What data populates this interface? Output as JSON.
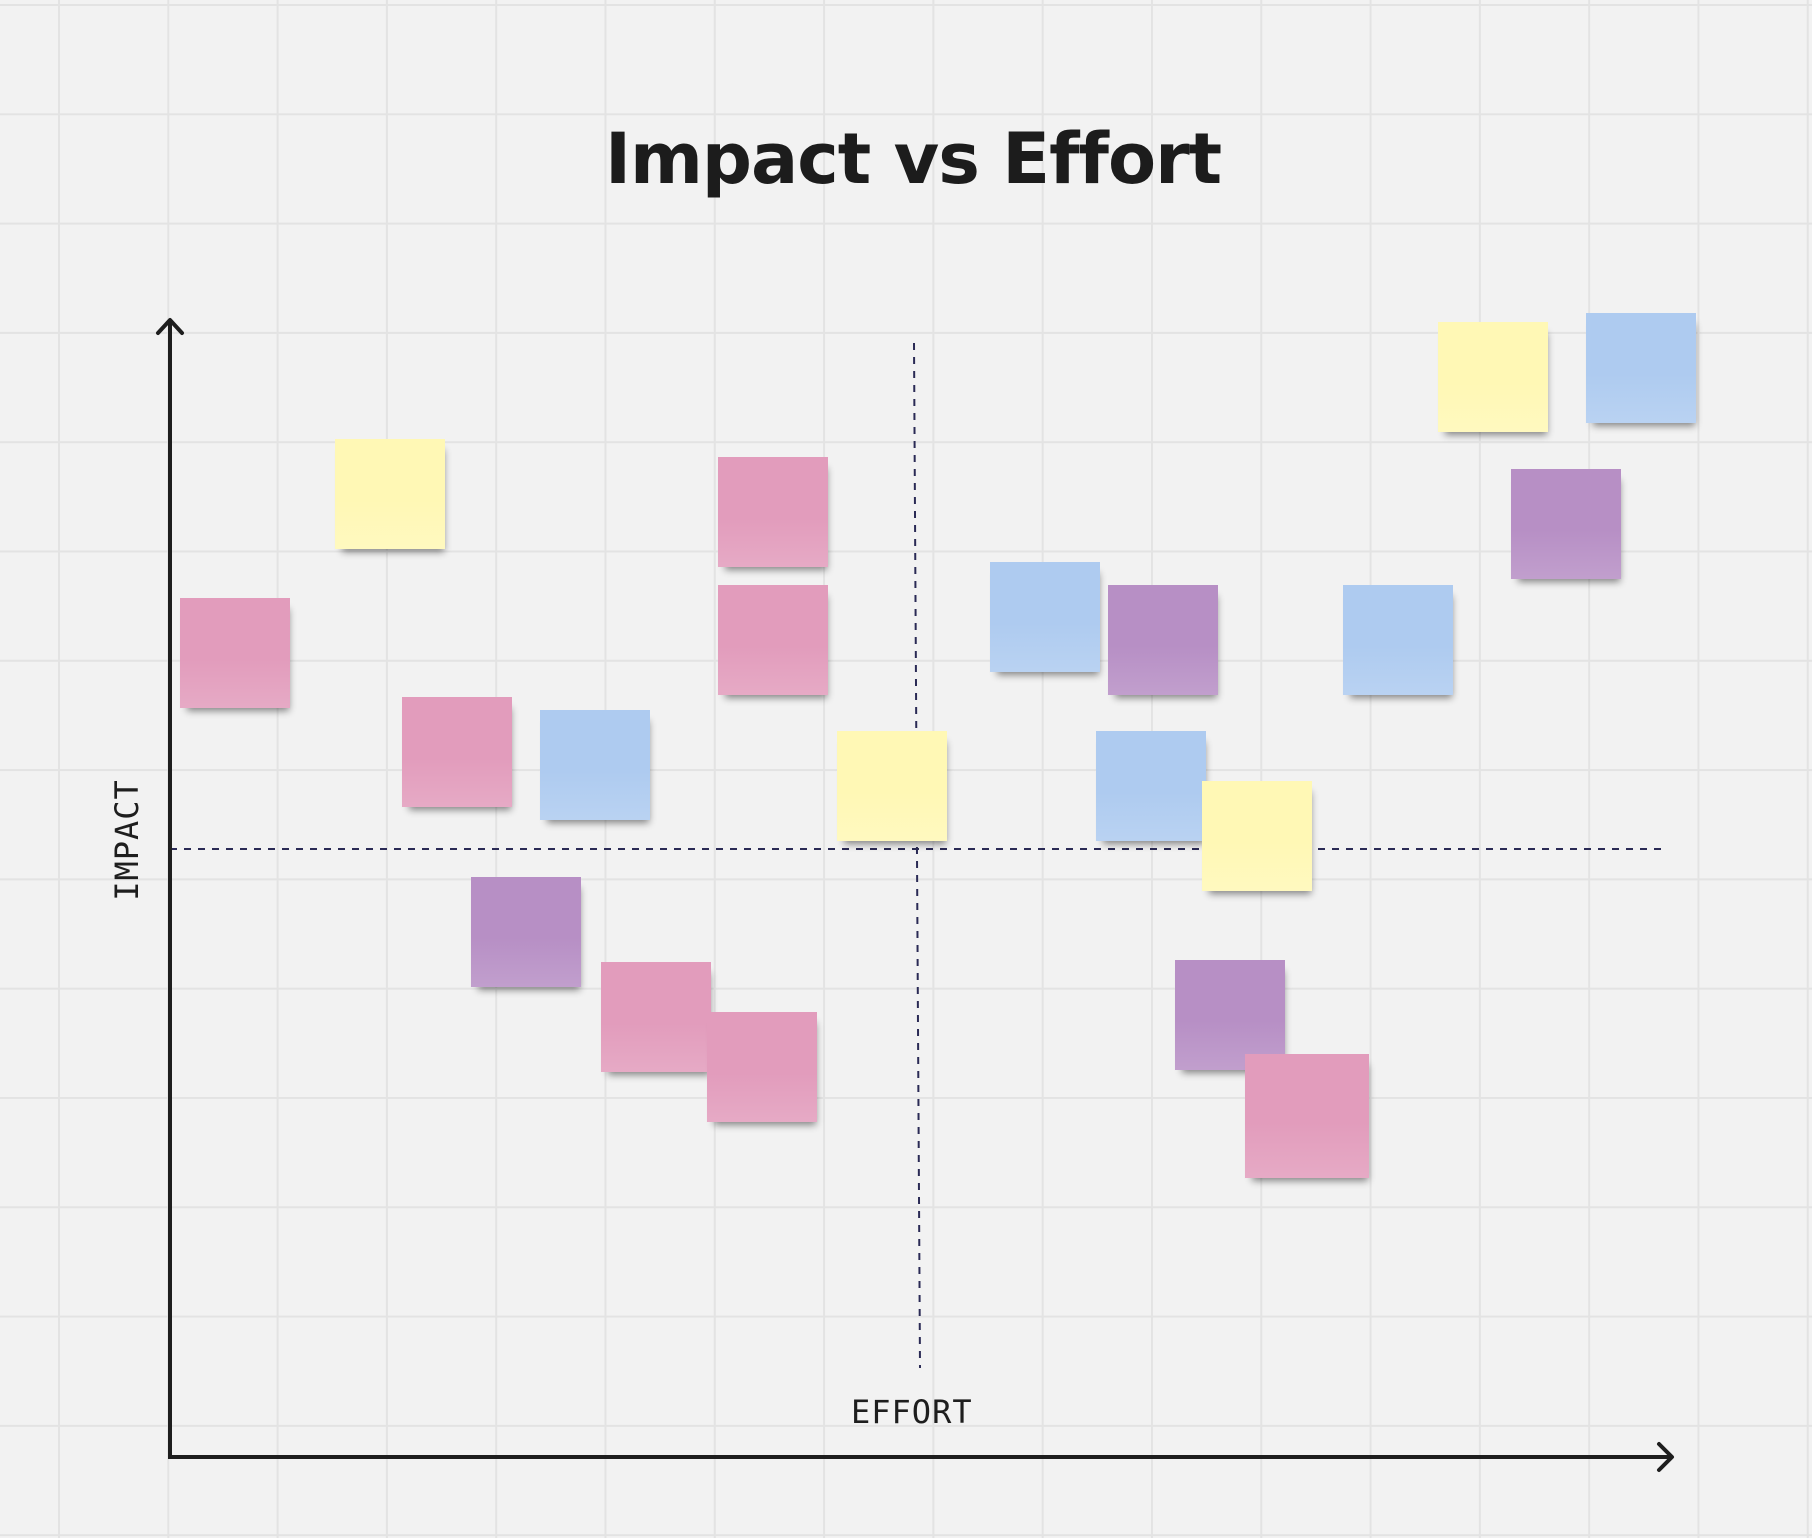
{
  "board": {
    "title": "Impact vs Effort",
    "x_axis_label": "EFFORT",
    "y_axis_label": "IMPACT"
  },
  "colors": {
    "yellow": "#fff8b5",
    "blue": "#aecbf0",
    "pink": "#e29cbc",
    "purple": "#b78fc5",
    "axis": "#1e1e1e",
    "divider": "#2a2a55"
  },
  "sticky_notes": [
    {
      "color": "yellow"
    },
    {
      "color": "pink"
    },
    {
      "color": "pink"
    },
    {
      "color": "pink"
    },
    {
      "color": "pink"
    },
    {
      "color": "blue"
    },
    {
      "color": "purple"
    },
    {
      "color": "pink"
    },
    {
      "color": "pink"
    },
    {
      "color": "yellow"
    },
    {
      "color": "blue"
    },
    {
      "color": "purple"
    },
    {
      "color": "blue"
    },
    {
      "color": "yellow"
    },
    {
      "color": "purple"
    },
    {
      "color": "pink"
    },
    {
      "color": "blue"
    },
    {
      "color": "yellow"
    },
    {
      "color": "blue"
    },
    {
      "color": "purple"
    }
  ]
}
